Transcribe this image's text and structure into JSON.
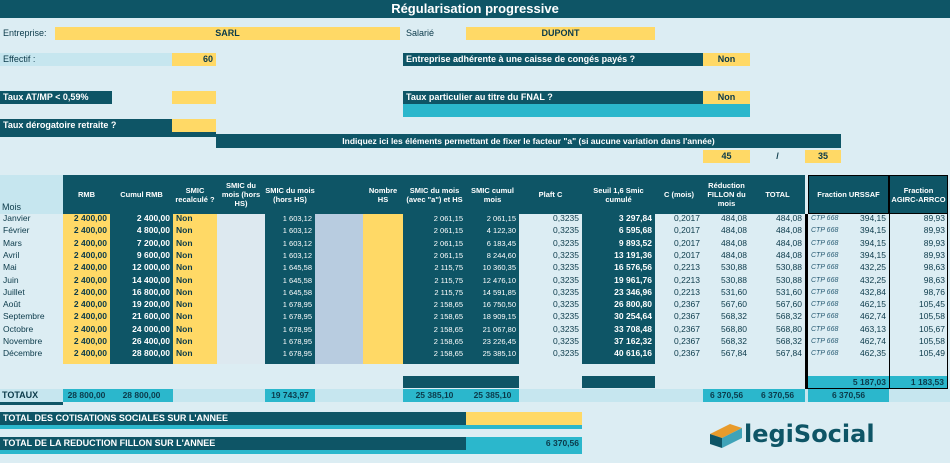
{
  "title": "Régularisation progressive",
  "entreprise": {
    "label": "Entreprise:",
    "value": "SARL"
  },
  "salarie": {
    "label": "Salarié",
    "value": "DUPONT"
  },
  "effectif": {
    "label": "Effectif :",
    "value": "60"
  },
  "conges": {
    "label": "Entreprise adhérente à une caisse de congés payés ?",
    "value": "Non"
  },
  "taux_atmp": {
    "label": "Taux AT/MP < 0,59%"
  },
  "fnal": {
    "label": "Taux particulier au titre du FNAL ?",
    "value": "Non"
  },
  "taux_derog": {
    "label": "Taux dérogatoire retraite ?"
  },
  "facteur": {
    "label": "Indiquez ici les éléments permettant de fixer le facteur \"a\" (si aucune variation dans l'année)",
    "a1": "45",
    "sep": "/",
    "a2": "35"
  },
  "headers": {
    "mois": "Mois",
    "rmb": "RMB",
    "cumul_rmb": "Cumul RMB",
    "smic_recalc": "SMIC recalculé ?",
    "smic_hors_hs": "SMIC du mois (hors HS)",
    "smic_hors_hs2": "SMIC du mois (hors HS)",
    "nombre_hs": "Nombre HS",
    "smic_avec_a": "SMIC du mois (avec \"a\") et HS",
    "smic_cumul": "SMIC cumul mois",
    "plafc": "Plaft C",
    "seuil": "Seuil 1,6 Smic cumulé",
    "cmois": "C (mois)",
    "reduction": "Réduction FILLON du mois",
    "total": "TOTAL",
    "urssaf": "Fraction URSSAF",
    "agirc": "Fraction AGIRC-ARRCO"
  },
  "rows": [
    {
      "mois": "Janvier",
      "rmb": "2 400,00",
      "cumul": "2 400,00",
      "recalc": "Non",
      "smic": "1 603,12",
      "smic_a": "2 061,15",
      "smic_cumul": "2 061,15",
      "plafc": "0,3235",
      "seuil": "3 297,84",
      "c": "0,2017",
      "red": "484,08",
      "total": "484,08",
      "ctp": "CTP 668",
      "urssaf": "394,15",
      "agirc": "89,93"
    },
    {
      "mois": "Février",
      "rmb": "2 400,00",
      "cumul": "4 800,00",
      "recalc": "Non",
      "smic": "1 603,12",
      "smic_a": "2 061,15",
      "smic_cumul": "4 122,30",
      "plafc": "0,3235",
      "seuil": "6 595,68",
      "c": "0,2017",
      "red": "484,08",
      "total": "484,08",
      "ctp": "CTP 668",
      "urssaf": "394,15",
      "agirc": "89,93"
    },
    {
      "mois": "Mars",
      "rmb": "2 400,00",
      "cumul": "7 200,00",
      "recalc": "Non",
      "smic": "1 603,12",
      "smic_a": "2 061,15",
      "smic_cumul": "6 183,45",
      "plafc": "0,3235",
      "seuil": "9 893,52",
      "c": "0,2017",
      "red": "484,08",
      "total": "484,08",
      "ctp": "CTP 668",
      "urssaf": "394,15",
      "agirc": "89,93"
    },
    {
      "mois": "Avril",
      "rmb": "2 400,00",
      "cumul": "9 600,00",
      "recalc": "Non",
      "smic": "1 603,12",
      "smic_a": "2 061,15",
      "smic_cumul": "8 244,60",
      "plafc": "0,3235",
      "seuil": "13 191,36",
      "c": "0,2017",
      "red": "484,08",
      "total": "484,08",
      "ctp": "CTP 668",
      "urssaf": "394,15",
      "agirc": "89,93"
    },
    {
      "mois": "Mai",
      "rmb": "2 400,00",
      "cumul": "12 000,00",
      "recalc": "Non",
      "smic": "1 645,58",
      "smic_a": "2 115,75",
      "smic_cumul": "10 360,35",
      "plafc": "0,3235",
      "seuil": "16 576,56",
      "c": "0,2213",
      "red": "530,88",
      "total": "530,88",
      "ctp": "CTP 668",
      "urssaf": "432,25",
      "agirc": "98,63"
    },
    {
      "mois": "Juin",
      "rmb": "2 400,00",
      "cumul": "14 400,00",
      "recalc": "Non",
      "smic": "1 645,58",
      "smic_a": "2 115,75",
      "smic_cumul": "12 476,10",
      "plafc": "0,3235",
      "seuil": "19 961,76",
      "c": "0,2213",
      "red": "530,88",
      "total": "530,88",
      "ctp": "CTP 668",
      "urssaf": "432,25",
      "agirc": "98,63"
    },
    {
      "mois": "Juillet",
      "rmb": "2 400,00",
      "cumul": "16 800,00",
      "recalc": "Non",
      "smic": "1 645,58",
      "smic_a": "2 115,75",
      "smic_cumul": "14 591,85",
      "plafc": "0,3235",
      "seuil": "23 346,96",
      "c": "0,2213",
      "red": "531,60",
      "total": "531,60",
      "ctp": "CTP 668",
      "urssaf": "432,84",
      "agirc": "98,76"
    },
    {
      "mois": "Août",
      "rmb": "2 400,00",
      "cumul": "19 200,00",
      "recalc": "Non",
      "smic": "1 678,95",
      "smic_a": "2 158,65",
      "smic_cumul": "16 750,50",
      "plafc": "0,3235",
      "seuil": "26 800,80",
      "c": "0,2367",
      "red": "567,60",
      "total": "567,60",
      "ctp": "CTP 668",
      "urssaf": "462,15",
      "agirc": "105,45"
    },
    {
      "mois": "Septembre",
      "rmb": "2 400,00",
      "cumul": "21 600,00",
      "recalc": "Non",
      "smic": "1 678,95",
      "smic_a": "2 158,65",
      "smic_cumul": "18 909,15",
      "plafc": "0,3235",
      "seuil": "30 254,64",
      "c": "0,2367",
      "red": "568,32",
      "total": "568,32",
      "ctp": "CTP 668",
      "urssaf": "462,74",
      "agirc": "105,58"
    },
    {
      "mois": "Octobre",
      "rmb": "2 400,00",
      "cumul": "24 000,00",
      "recalc": "Non",
      "smic": "1 678,95",
      "smic_a": "2 158,65",
      "smic_cumul": "21 067,80",
      "plafc": "0,3235",
      "seuil": "33 708,48",
      "c": "0,2367",
      "red": "568,80",
      "total": "568,80",
      "ctp": "CTP 668",
      "urssaf": "463,13",
      "agirc": "105,67"
    },
    {
      "mois": "Novembre",
      "rmb": "2 400,00",
      "cumul": "26 400,00",
      "recalc": "Non",
      "smic": "1 678,95",
      "smic_a": "2 158,65",
      "smic_cumul": "23 226,45",
      "plafc": "0,3235",
      "seuil": "37 162,32",
      "c": "0,2367",
      "red": "568,32",
      "total": "568,32",
      "ctp": "CTP 668",
      "urssaf": "462,74",
      "agirc": "105,58"
    },
    {
      "mois": "Décembre",
      "rmb": "2 400,00",
      "cumul": "28 800,00",
      "recalc": "Non",
      "smic": "1 678,95",
      "smic_a": "2 158,65",
      "smic_cumul": "25 385,10",
      "plafc": "0,3235",
      "seuil": "40 616,16",
      "c": "0,2367",
      "red": "567,84",
      "total": "567,84",
      "ctp": "CTP 668",
      "urssaf": "462,35",
      "agirc": "105,49"
    }
  ],
  "subtotals": {
    "urssaf": "5 187,03",
    "agirc": "1 183,53"
  },
  "totaux": {
    "label": "TOTAUX",
    "rmb": "28 800,00",
    "cumul": "28 800,00",
    "smic": "19 743,97",
    "smic_a": "25 385,10",
    "smic_cumul": "25 385,10",
    "red": "6 370,56",
    "total": "6 370,56",
    "fraction": "6 370,56"
  },
  "total_cotisations": {
    "label": "TOTAL DES COTISATIONS SOCIALES SUR L'ANNEE"
  },
  "total_reduction": {
    "label": "TOTAL DE LA REDUCTION FILLON SUR L'ANNEE",
    "value": "6 370,56"
  },
  "logo": {
    "text": "legiSocial"
  }
}
